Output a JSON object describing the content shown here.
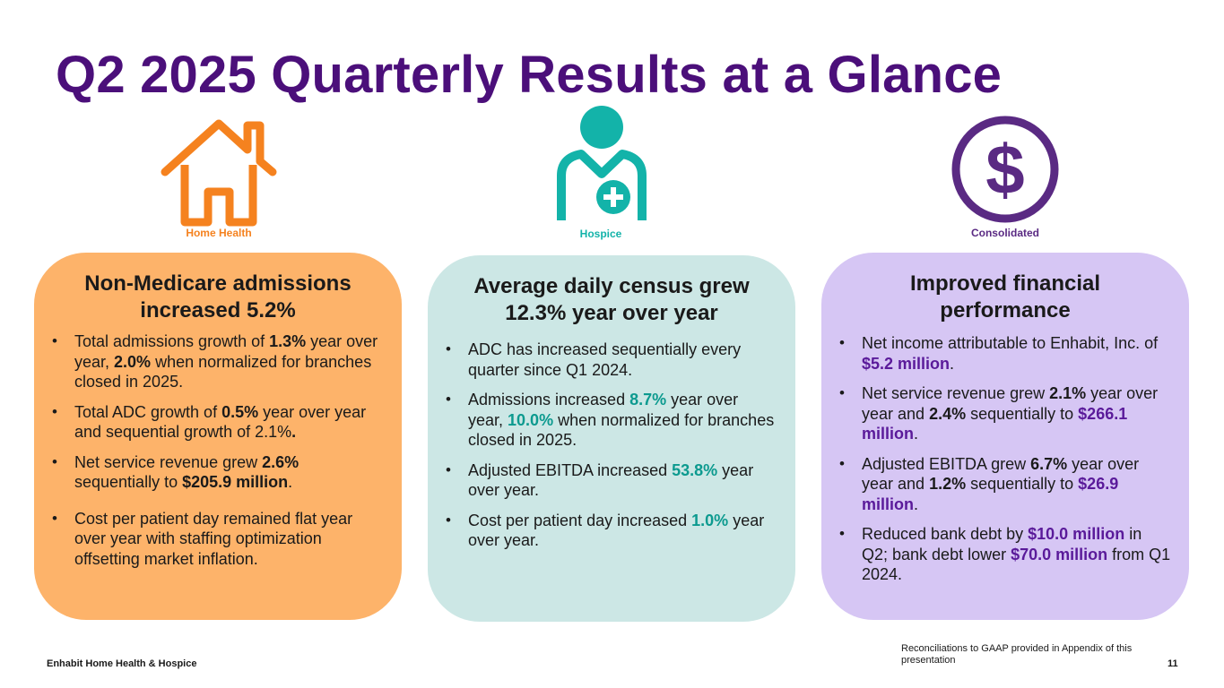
{
  "title": "Q2 2025 Quarterly Results at a Glance",
  "colors": {
    "title": "#4b0f7a",
    "home_health": "#f5821f",
    "hospice": "#13b3a9",
    "consolidated": "#5a2a83",
    "card_home": "#fdb36a",
    "card_hospice": "#cce7e5",
    "card_consolidated": "#d6c6f4"
  },
  "icons": {
    "home_health": "house-icon",
    "hospice": "caregiver-icon",
    "consolidated": "dollar-circle-icon"
  },
  "segments": {
    "home_health": {
      "label": "Home Health",
      "heading": "Non-Medicare admissions increased 5.2%",
      "bullets": [
        {
          "p1": "Total admissions growth of ",
          "v1": "1.3%",
          "p2": " year over year, ",
          "v2": "2.0%",
          "p3": " when normalized for branches closed in 2025."
        },
        {
          "p1": "Total ADC growth of ",
          "v1": "0.5%",
          "p2": " year over year and sequential growth of 2.1%",
          "v2": "."
        },
        {
          "p1": "Net service revenue grew ",
          "v1": "2.6%",
          "p2": " sequentially to ",
          "v2": "$205.9 million",
          "p3": "."
        },
        {
          "text": "Cost per patient day remained flat year over year with staffing optimization offsetting market inflation."
        }
      ]
    },
    "hospice": {
      "label": "Hospice",
      "heading": "Average daily census grew 12.3% year over year",
      "bullets": [
        {
          "text": "ADC has increased sequentially every quarter since Q1 2024."
        },
        {
          "p1": "Admissions increased ",
          "v1": "8.7%",
          "p2": " year over year, ",
          "v2": "10.0%",
          "p3": " when normalized for branches closed in 2025."
        },
        {
          "p1": "Adjusted EBITDA increased ",
          "v1": "53.8%",
          "p2": " year over year."
        },
        {
          "p1": "Cost per patient day increased ",
          "v1": "1.0%",
          "p2": " year over year."
        }
      ]
    },
    "consolidated": {
      "label": "Consolidated",
      "heading": "Improved financial performance",
      "bullets": [
        {
          "p1": "Net income attributable to Enhabit, Inc. of ",
          "v1": "$5.2 million",
          "p2": "."
        },
        {
          "p1": "Net service revenue grew ",
          "v1": "2.1%",
          "p2": " year over year and ",
          "v2": "2.4%",
          "p3": " sequentially to ",
          "v3": "$266.1 million",
          "p4": "."
        },
        {
          "p1": "Adjusted EBITDA grew ",
          "v1": "6.7%",
          "p2": " year over year and ",
          "v2": "1.2%",
          "p3": " sequentially to ",
          "v3": "$26.9 million",
          "p4": "."
        },
        {
          "p1": "Reduced bank debt by ",
          "v1": "$10.0 million",
          "p2": " in Q2; bank debt lower ",
          "v2": "$70.0 million",
          "p3": " from Q1 2024."
        }
      ]
    }
  },
  "footer": {
    "company": "Enhabit Home Health & Hospice",
    "note": "Reconciliations to GAAP provided in Appendix of this presentation",
    "page": "11"
  }
}
